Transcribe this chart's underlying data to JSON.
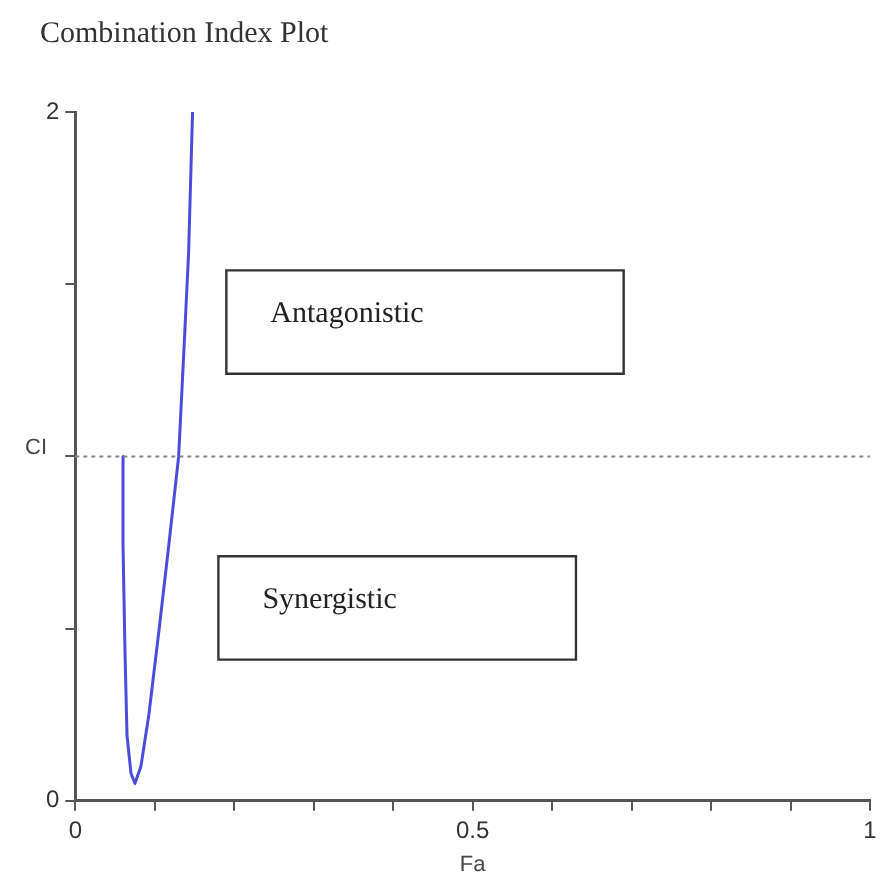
{
  "chart_data": {
    "type": "line",
    "title": "Combination Index Plot",
    "xlabel": "Fa",
    "ylabel": "CI",
    "x": [
      0.06,
      0.06,
      0.0625,
      0.065,
      0.07,
      0.075,
      0.0825,
      0.0925,
      0.105,
      0.1175,
      0.13,
      0.1375,
      0.1425,
      0.1475
    ],
    "series": [
      {
        "color": "#4b4bdc",
        "values": [
          1.0,
          0.74,
          0.43,
          0.19,
          0.08,
          0.05,
          0.1,
          0.25,
          0.49,
          0.74,
          1.0,
          1.35,
          1.59,
          2.0
        ]
      }
    ],
    "xlim": [
      0,
      1
    ],
    "xticks": [
      0,
      {
        "value": 0.1,
        "label": null
      },
      {
        "value": 0.2,
        "label": null
      },
      {
        "value": 0.3,
        "label": null
      },
      {
        "value": 0.4,
        "label": null
      },
      0.5,
      {
        "value": 0.6,
        "label": null
      },
      {
        "value": 0.7,
        "label": null
      },
      {
        "value": 0.8,
        "label": null
      },
      {
        "value": 0.9,
        "label": null
      },
      1
    ],
    "ylim": [
      0,
      2
    ],
    "yticks": [
      0,
      {
        "value": 0.5,
        "label": null
      },
      {
        "value": 1,
        "label": null
      },
      {
        "value": 1.5,
        "label": null
      },
      2
    ],
    "ref_lines": [
      {
        "axis": "y",
        "value": 1,
        "color": "#888888",
        "line_style": "dotted"
      }
    ],
    "annotations": [
      "Antagonistic",
      "Synergistic"
    ],
    "grid": false,
    "legend": false,
    "marker": "none",
    "line_style": "solid"
  }
}
